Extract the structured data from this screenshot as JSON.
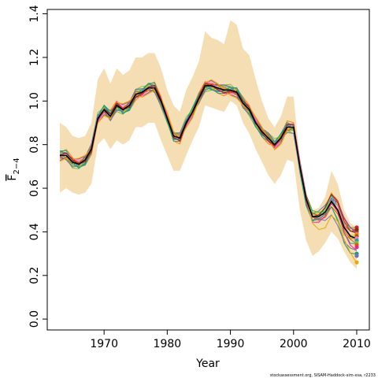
{
  "chart_data": {
    "type": "line",
    "xlabel": "Year",
    "ylabel": "F",
    "ylabel_subscript": "2−4",
    "credit": "stockassessment.org, SISAM-Haddock-sim-xsa, r2233",
    "xlim": [
      1961,
      2012
    ],
    "ylim": [
      -0.05,
      1.42
    ],
    "xticks": [
      1970,
      1980,
      1990,
      2000,
      2010
    ],
    "yticks": [
      0.0,
      0.2,
      0.4,
      0.6,
      0.8,
      1.0,
      1.2,
      1.4
    ],
    "colors": {
      "band": "#f5deb3",
      "central": "#000000",
      "series": [
        "#e41a1c",
        "#377eb8",
        "#4daf4a",
        "#984ea3",
        "#ff7f00",
        "#c9c900",
        "#a65628",
        "#f781bf",
        "#1f9e9e",
        "#7fbf3f",
        "#d95f02",
        "#e7298a",
        "#1b9e77",
        "#7570b3",
        "#e6ab02",
        "#8c2d04"
      ]
    },
    "x": [
      1963,
      1964,
      1965,
      1966,
      1967,
      1968,
      1969,
      1970,
      1971,
      1972,
      1973,
      1974,
      1975,
      1976,
      1977,
      1978,
      1979,
      1980,
      1981,
      1982,
      1983,
      1984,
      1985,
      1986,
      1987,
      1988,
      1989,
      1990,
      1991,
      1992,
      1993,
      1994,
      1995,
      1996,
      1997,
      1998,
      1999,
      2000,
      2001,
      2002,
      2003,
      2004,
      2005,
      2006,
      2007,
      2008,
      2009,
      2010
    ],
    "band_upper": [
      0.9,
      0.88,
      0.84,
      0.83,
      0.84,
      0.9,
      1.1,
      1.15,
      1.08,
      1.15,
      1.12,
      1.14,
      1.2,
      1.2,
      1.22,
      1.22,
      1.15,
      1.05,
      0.98,
      0.95,
      1.05,
      1.11,
      1.18,
      1.32,
      1.29,
      1.28,
      1.26,
      1.37,
      1.35,
      1.24,
      1.21,
      1.1,
      1.0,
      0.92,
      0.88,
      0.93,
      1.02,
      1.02,
      0.73,
      0.56,
      0.5,
      0.51,
      0.56,
      0.68,
      0.62,
      0.5,
      0.44,
      0.42
    ],
    "band_lower": [
      0.58,
      0.6,
      0.58,
      0.57,
      0.58,
      0.62,
      0.8,
      0.83,
      0.78,
      0.82,
      0.8,
      0.82,
      0.88,
      0.88,
      0.9,
      0.9,
      0.82,
      0.75,
      0.68,
      0.68,
      0.75,
      0.82,
      0.88,
      0.98,
      0.97,
      0.96,
      0.95,
      1.0,
      0.98,
      0.9,
      0.85,
      0.78,
      0.72,
      0.66,
      0.62,
      0.66,
      0.73,
      0.72,
      0.5,
      0.36,
      0.29,
      0.31,
      0.35,
      0.4,
      0.37,
      0.31,
      0.26,
      0.23
    ],
    "central": [
      0.75,
      0.75,
      0.72,
      0.71,
      0.73,
      0.78,
      0.92,
      0.96,
      0.93,
      0.98,
      0.96,
      0.98,
      1.03,
      1.04,
      1.06,
      1.06,
      1.0,
      0.92,
      0.84,
      0.83,
      0.9,
      0.95,
      1.01,
      1.07,
      1.07,
      1.06,
      1.05,
      1.05,
      1.04,
      0.99,
      0.96,
      0.9,
      0.86,
      0.83,
      0.8,
      0.83,
      0.88,
      0.88,
      0.7,
      0.55,
      0.47,
      0.47,
      0.49,
      0.54,
      0.5,
      0.42,
      0.38,
      0.37
    ],
    "end_values": [
      0.42,
      0.41,
      0.4,
      0.4,
      0.39,
      0.38,
      0.38,
      0.37,
      0.36,
      0.35,
      0.34,
      0.33,
      0.3,
      0.29,
      0.26,
      0.41
    ]
  }
}
